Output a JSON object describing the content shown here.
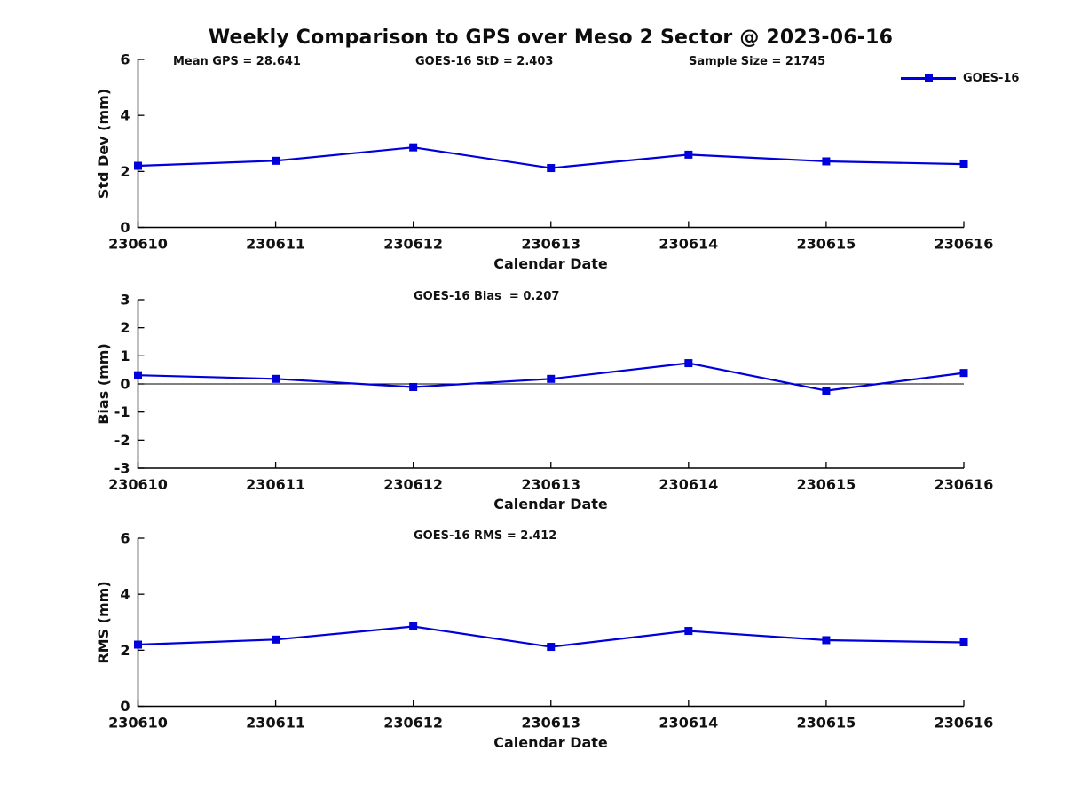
{
  "figure": {
    "title": "Weekly Comparison to GPS over Meso 2 Sector @ 2023-06-16",
    "legend": {
      "label": "GOES-16"
    },
    "colors": {
      "series": "#0000dd",
      "axis": "#000000",
      "text": "#111111"
    }
  },
  "chart_data": [
    {
      "type": "line",
      "subplot": "std-dev",
      "categories": [
        "230610",
        "230611",
        "230612",
        "230613",
        "230614",
        "230615",
        "230616"
      ],
      "series": [
        {
          "name": "GOES-16",
          "values": [
            2.2,
            2.38,
            2.86,
            2.12,
            2.6,
            2.36,
            2.26
          ]
        }
      ],
      "xlabel": "Calendar Date",
      "ylabel": "Std Dev (mm)",
      "ylim": [
        0,
        6
      ],
      "yticks": [
        0,
        2,
        4,
        6
      ],
      "grid": false,
      "legend_position": "top-right",
      "marker": "square",
      "annotations": [
        "Mean GPS = 28.641",
        "GOES-16 StD = 2.403",
        "Sample Size = 21745"
      ]
    },
    {
      "type": "line",
      "subplot": "bias",
      "categories": [
        "230610",
        "230611",
        "230612",
        "230613",
        "230614",
        "230615",
        "230616"
      ],
      "series": [
        {
          "name": "GOES-16",
          "values": [
            0.31,
            0.18,
            -0.11,
            0.18,
            0.74,
            -0.24,
            0.39
          ]
        }
      ],
      "xlabel": "Calendar Date",
      "ylabel": "Bias (mm)",
      "ylim": [
        -3,
        3
      ],
      "yticks": [
        -3,
        -2,
        -1,
        0,
        1,
        2,
        3
      ],
      "grid": false,
      "zero_line": true,
      "marker": "square",
      "annotations": [
        "GOES-16 Bias  = 0.207"
      ]
    },
    {
      "type": "line",
      "subplot": "rms",
      "categories": [
        "230610",
        "230611",
        "230612",
        "230613",
        "230614",
        "230615",
        "230616"
      ],
      "series": [
        {
          "name": "GOES-16",
          "values": [
            2.2,
            2.38,
            2.85,
            2.12,
            2.69,
            2.36,
            2.28
          ]
        }
      ],
      "xlabel": "Calendar Date",
      "ylabel": "RMS (mm)",
      "ylim": [
        0,
        6
      ],
      "yticks": [
        0,
        2,
        4,
        6
      ],
      "grid": false,
      "zero_line": false,
      "marker": "square",
      "annotations": [
        "GOES-16 RMS = 2.412"
      ]
    }
  ]
}
